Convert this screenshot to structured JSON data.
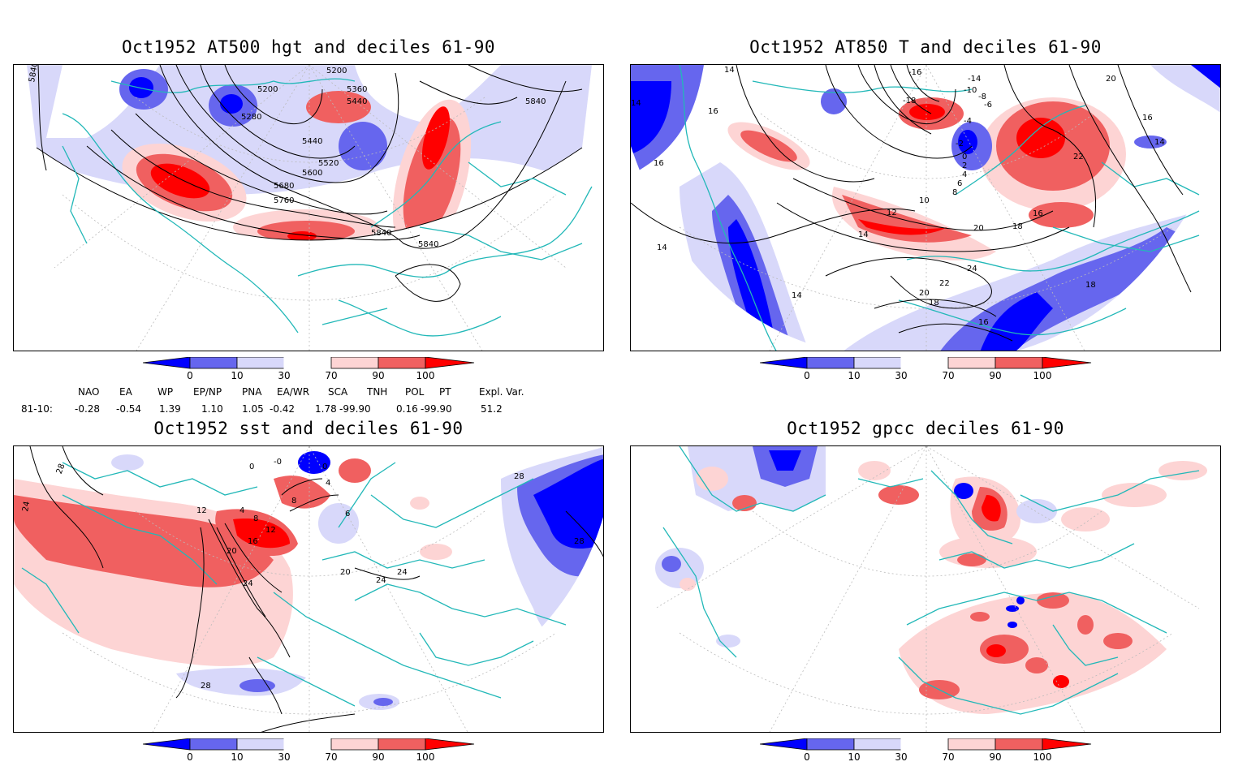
{
  "panels": {
    "tl": {
      "title": "Oct1952 AT500 hgt and deciles 61-90",
      "contour_labels": [
        "5840",
        "5200",
        "5200",
        "5360",
        "5440",
        "5280",
        "5440",
        "5520",
        "5600",
        "5680",
        "5760",
        "5840",
        "5840",
        "5840"
      ]
    },
    "tr": {
      "title": "Oct1952 AT850 T and deciles 61-90",
      "contour_labels": [
        "14",
        "16",
        "16",
        "14",
        "-16",
        "-14",
        "-10",
        "-18",
        "-8",
        "-6",
        "-4",
        "-2",
        "0",
        "2",
        "4",
        "6",
        "8",
        "10",
        "12",
        "14",
        "16",
        "18",
        "20",
        "22",
        "24",
        "22",
        "20",
        "18",
        "16",
        "14",
        "20",
        "16",
        "14",
        "18",
        "14",
        "22"
      ]
    },
    "bl": {
      "title": "Oct1952 sst and deciles 61-90",
      "contour_labels": [
        "28",
        "24",
        "0",
        "-0",
        "0",
        "4",
        "8",
        "4",
        "8",
        "12",
        "12",
        "16",
        "20",
        "24",
        "28",
        "20",
        "24",
        "24",
        "28",
        "28",
        "6"
      ]
    },
    "br": {
      "title": "Oct1952 gpcc deciles 61-90"
    }
  },
  "colorbar": {
    "ticks": [
      "0",
      "10",
      "30",
      "70",
      "90",
      "100"
    ],
    "colors": [
      "#0000ff",
      "#6666ee",
      "#d8d8fa",
      "#ffffff",
      "#fdd4d4",
      "#f06060",
      "#ff0000"
    ]
  },
  "indices": {
    "headers": [
      "NAO",
      "EA",
      "WP",
      "EP/NP",
      "PNA",
      "EA/WR",
      "SCA",
      "TNH",
      "POL",
      "PT",
      "Expl. Var."
    ],
    "row_label": "81-10:",
    "values": [
      "-0.28",
      "-0.54",
      "1.39",
      "1.10",
      "1.05",
      "-0.42",
      "1.78",
      "-99.90",
      "0.16",
      "-99.90",
      "51.2"
    ]
  },
  "colors": {
    "coast": "#22b8b8",
    "contour": "#000000",
    "grid": "#bbbbbb"
  }
}
